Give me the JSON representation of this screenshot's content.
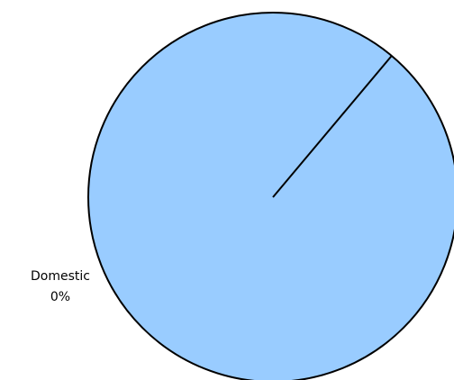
{
  "chart_data": {
    "type": "pie",
    "slices": [
      {
        "label": "Domestic",
        "value": 0,
        "value_label": "0%",
        "color": "#000000"
      },
      {
        "label": "",
        "value": 100,
        "value_label": "",
        "color": "#99ccff"
      }
    ],
    "start_angle_deg": 50,
    "legend": "none"
  }
}
